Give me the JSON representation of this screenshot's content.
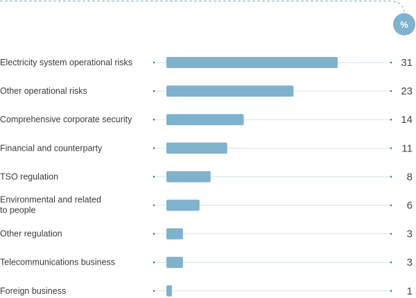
{
  "chart_data": {
    "type": "bar",
    "orientation": "horizontal",
    "unit": "%",
    "categories": [
      "Electricity system operational risks",
      "Other operational risks",
      "Comprehensive corporate security",
      "Financial and counterparty",
      "TSO regulation",
      "Environmental and related to people",
      "Other regulation",
      "Telecommunications business",
      "Foreign business"
    ],
    "values": [
      31,
      23,
      14,
      11,
      8,
      6,
      3,
      3,
      1
    ],
    "xlim": [
      0,
      31
    ],
    "grid": false,
    "legend": "none"
  },
  "colors": {
    "bar": "#7fb2cc",
    "guide": "#d3e6ef",
    "dot": "#2f7fa8",
    "text": "#3c3c3c"
  }
}
